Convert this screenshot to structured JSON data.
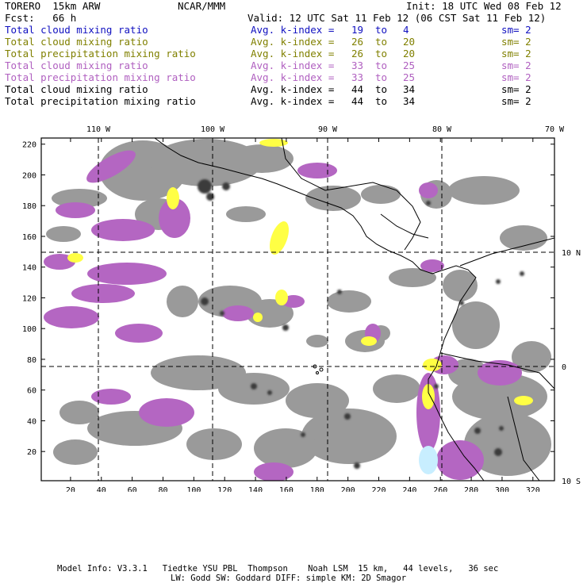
{
  "header": {
    "model": "TORERO  15km ARW",
    "center": "NCAR/MMM",
    "init": "Init: 18 UTC Wed 08 Feb 12",
    "fcst": "Fcst:   66 h",
    "valid": "Valid: 12 UTC Sat 11 Feb 12 (06 CST Sat 11 Feb 12)"
  },
  "legend": [
    {
      "field": "Total cloud mixing ratio",
      "label": "Avg. k-index =",
      "from": "19",
      "to_word": "to",
      "to": "4",
      "sm": "sm= 2",
      "color": "#1010c0"
    },
    {
      "field": "Total cloud mixing ratio",
      "label": "Avg. k-index =",
      "from": "26",
      "to_word": "to",
      "to": "20",
      "sm": "sm= 2",
      "color": "#808000"
    },
    {
      "field": "Total precipitation mixing ratio",
      "label": "Avg. k-index =",
      "from": "26",
      "to_word": "to",
      "to": "20",
      "sm": "sm= 2",
      "color": "#808000"
    },
    {
      "field": "Total cloud mixing ratio",
      "label": "Avg. k-index =",
      "from": "33",
      "to_word": "to",
      "to": "25",
      "sm": "sm= 2",
      "color": "#b060c0"
    },
    {
      "field": "Total precipitation mixing ratio",
      "label": "Avg. k-index =",
      "from": "33",
      "to_word": "to",
      "to": "25",
      "sm": "sm= 2",
      "color": "#b060c0"
    },
    {
      "field": "Total cloud mixing ratio",
      "label": "Avg. k-index =",
      "from": "44",
      "to_word": "to",
      "to": "34",
      "sm": "sm= 2",
      "color": "#000000"
    },
    {
      "field": "Total precipitation mixing ratio",
      "label": "Avg. k-index =",
      "from": "44",
      "to_word": "to",
      "to": "34",
      "sm": "sm= 2",
      "color": "#000000"
    }
  ],
  "map": {
    "grid_x_ticks": [
      "20",
      "40",
      "60",
      "80",
      "100",
      "120",
      "140",
      "160",
      "180",
      "200",
      "220",
      "240",
      "260",
      "280",
      "300",
      "320"
    ],
    "grid_x_vals": [
      20,
      40,
      60,
      80,
      100,
      120,
      140,
      160,
      180,
      200,
      220,
      240,
      260,
      280,
      300,
      320
    ],
    "grid_y_ticks": [
      "20",
      "40",
      "60",
      "80",
      "100",
      "120",
      "140",
      "160",
      "180",
      "200",
      "220"
    ],
    "grid_y_vals": [
      20,
      40,
      60,
      80,
      100,
      120,
      140,
      160,
      180,
      200,
      220
    ],
    "grid_x_range": [
      1,
      334
    ],
    "grid_y_range": [
      1,
      224
    ],
    "lon_labels": [
      "110 W",
      "100 W",
      "90 W",
      "80 W",
      "70 W"
    ],
    "lat_labels": [
      "10 N",
      "0",
      "10 S"
    ],
    "colors": {
      "gray": "#9a9a9a",
      "dark": "#3a3a3a",
      "purple": "#b466c2",
      "yellow": "#ffff44",
      "cyan": "#c8eeff"
    }
  },
  "footer": {
    "line1": "Model Info: V3.3.1   Tiedtke YSU PBL  Thompson    Noah LSM  15 km,   44 levels,   36 sec",
    "line2": "LW: Godd SW: Goddard DIFF: simple KM: 2D Smagor"
  }
}
